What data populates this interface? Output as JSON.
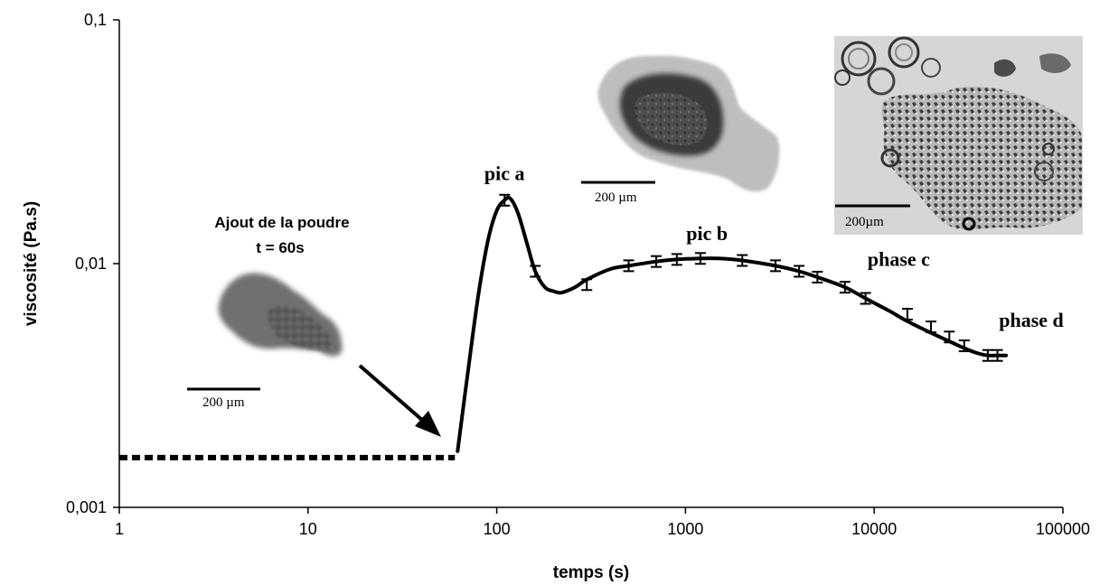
{
  "chart_data": {
    "type": "line",
    "xlabel": "temps (s)",
    "ylabel": "viscosité (Pa.s)",
    "xscale": "log",
    "yscale": "log",
    "xlim": [
      1,
      100000
    ],
    "ylim": [
      0.001,
      0.1
    ],
    "x_ticks": [
      "1",
      "10",
      "100",
      "1000",
      "10000",
      "100000"
    ],
    "y_ticks": [
      "0,001",
      "0,01",
      "0,1"
    ],
    "baseline": {
      "x": [
        1,
        60
      ],
      "y": [
        0.0016,
        0.0016
      ],
      "style": "dashed"
    },
    "series": [
      {
        "x": [
          62,
          70,
          80,
          90,
          100,
          110,
          118,
          130,
          145,
          160,
          180,
          200,
          220,
          260,
          300,
          400,
          500,
          700,
          900,
          1200,
          1500,
          2000,
          3000,
          4000,
          5000,
          7000,
          9000,
          12000,
          15000,
          20000,
          25000,
          30000,
          35000,
          40000,
          45000,
          50000
        ],
        "y": [
          0.0017,
          0.0035,
          0.0075,
          0.0125,
          0.0165,
          0.0182,
          0.0185,
          0.016,
          0.012,
          0.0093,
          0.008,
          0.0077,
          0.0076,
          0.008,
          0.0086,
          0.0095,
          0.0098,
          0.0102,
          0.0104,
          0.0105,
          0.0105,
          0.0103,
          0.0098,
          0.0093,
          0.0088,
          0.008,
          0.0072,
          0.0064,
          0.0058,
          0.0052,
          0.0048,
          0.0045,
          0.0043,
          0.0042,
          0.0042,
          0.0042
        ]
      }
    ],
    "error_bars": {
      "x": [
        110,
        160,
        300,
        500,
        700,
        900,
        1200,
        2000,
        3000,
        4000,
        5000,
        7000,
        9000,
        15000,
        20000,
        25000,
        30000,
        40000,
        45000
      ],
      "y": [
        0.0182,
        0.0093,
        0.0082,
        0.0098,
        0.0102,
        0.0104,
        0.0105,
        0.0103,
        0.0098,
        0.0093,
        0.0088,
        0.008,
        0.0072,
        0.0062,
        0.0055,
        0.005,
        0.0046,
        0.0042,
        0.0042
      ]
    },
    "annotations": [
      {
        "text": "pic a",
        "x": 110,
        "y": 0.022
      },
      {
        "text": "pic b",
        "x": 1300,
        "y": 0.0125
      },
      {
        "text": "phase c",
        "x": 13500,
        "y": 0.0098
      },
      {
        "text": "phase d",
        "x": 68000,
        "y": 0.0055
      }
    ],
    "powder_label": [
      "Ajout de la poudre",
      "t = 60s"
    ],
    "scale_bars": [
      "200 µm",
      "200 µm",
      "200µm"
    ]
  }
}
